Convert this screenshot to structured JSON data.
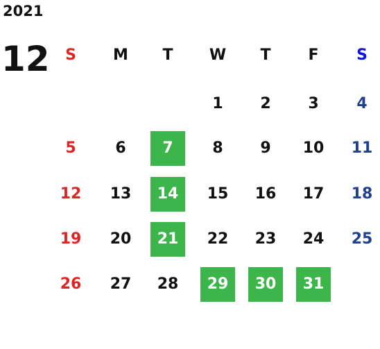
{
  "year": "2021",
  "month": "12",
  "weekdays": [
    "S",
    "M",
    "T",
    "W",
    "T",
    "F",
    "S"
  ],
  "weeks": [
    [
      null,
      null,
      null,
      {
        "label": "1"
      },
      {
        "label": "2"
      },
      {
        "label": "3"
      },
      {
        "label": "4"
      }
    ],
    [
      {
        "label": "5"
      },
      {
        "label": "6"
      },
      {
        "label": "7",
        "highlight": true
      },
      {
        "label": "8"
      },
      {
        "label": "9"
      },
      {
        "label": "10"
      },
      {
        "label": "11"
      }
    ],
    [
      {
        "label": "12"
      },
      {
        "label": "13"
      },
      {
        "label": "14",
        "highlight": true
      },
      {
        "label": "15"
      },
      {
        "label": "16"
      },
      {
        "label": "17"
      },
      {
        "label": "18"
      }
    ],
    [
      {
        "label": "19"
      },
      {
        "label": "20"
      },
      {
        "label": "21",
        "highlight": true
      },
      {
        "label": "22"
      },
      {
        "label": "23"
      },
      {
        "label": "24"
      },
      {
        "label": "25"
      }
    ],
    [
      {
        "label": "26"
      },
      {
        "label": "27"
      },
      {
        "label": "28"
      },
      {
        "label": "29",
        "highlight": true
      },
      {
        "label": "30",
        "highlight": true
      },
      {
        "label": "31",
        "highlight": true
      },
      null
    ]
  ]
}
